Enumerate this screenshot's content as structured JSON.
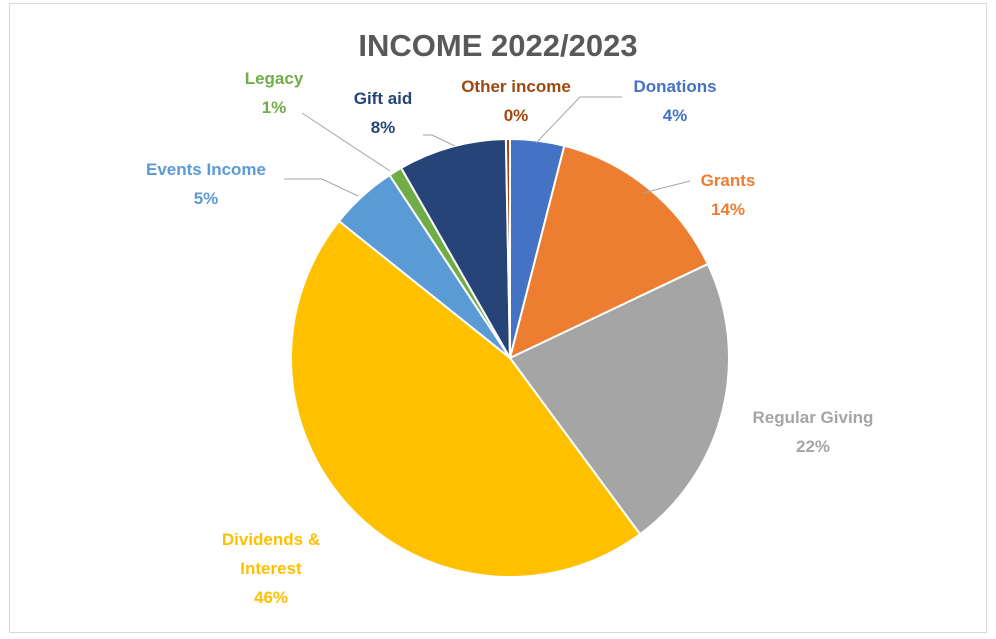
{
  "chart_data": {
    "type": "pie",
    "title": "INCOME 2022/2023",
    "slices": [
      {
        "name": "Donations",
        "value": 4,
        "label": "4%",
        "color": "#4472C4"
      },
      {
        "name": "Grants",
        "value": 14,
        "label": "14%",
        "color": "#ED7D31"
      },
      {
        "name": "Regular Giving",
        "value": 22,
        "label": "22%",
        "color": "#A5A5A5"
      },
      {
        "name": "Dividends &",
        "name_line2": "Interest",
        "value": 46,
        "label": "46%",
        "color": "#FFC000"
      },
      {
        "name": "Events Income",
        "value": 5,
        "label": "5%",
        "color": "#5B9BD5"
      },
      {
        "name": "Legacy",
        "value": 1,
        "label": "1%",
        "color": "#70AD47"
      },
      {
        "name": "Gift aid",
        "value": 8,
        "label": "8%",
        "color": "#264478"
      },
      {
        "name": "Other income",
        "value": 0,
        "label": "0%",
        "color": "#9E480E"
      }
    ],
    "legend": "none",
    "start": "top",
    "direction": "clockwise"
  }
}
